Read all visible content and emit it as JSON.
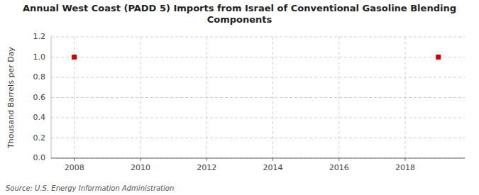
{
  "chart_data": {
    "type": "scatter",
    "title": "Annual West Coast (PADD 5) Imports from Israel of Conventional Gasoline Blending\nComponents",
    "ylabel": "Thousand Barrels per Day",
    "annotations": [
      "Source: U.S. Energy Information Administration"
    ],
    "x": [
      2008,
      2019
    ],
    "values": [
      1.0,
      1.0
    ],
    "color": "#cc0000",
    "marker": "square",
    "xlim": [
      2007.3,
      2019.8
    ],
    "ylim": [
      0.0,
      1.2
    ],
    "xticks": [
      2008,
      2010,
      2012,
      2014,
      2016,
      2018
    ],
    "yticks": [
      {
        "value": 0.0,
        "label": "0.0"
      },
      0.2,
      0.4,
      0.6,
      0.8,
      {
        "value": 1.0,
        "label": "1.0"
      },
      1.2
    ],
    "grid": true
  }
}
